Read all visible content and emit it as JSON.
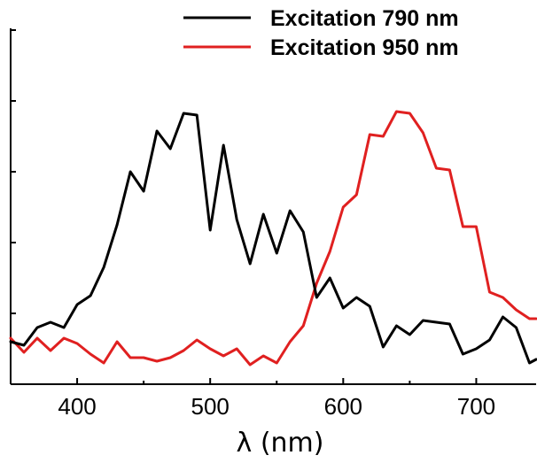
{
  "chart_data": {
    "type": "line",
    "xlabel": "λ (nm)",
    "ylabel": "",
    "xlim": [
      350,
      745
    ],
    "ylim": [
      0,
      1.0
    ],
    "x_ticks": [
      400,
      500,
      600,
      700
    ],
    "y_tick_count": 6,
    "y_tick_labels_shown": false,
    "grid": false,
    "legend_position": "top-right",
    "series": [
      {
        "name": "Excitation 790 nm",
        "color": "#000000",
        "x": [
          350,
          360,
          370,
          380,
          390,
          400,
          410,
          420,
          430,
          440,
          450,
          460,
          470,
          480,
          490,
          500,
          510,
          520,
          530,
          540,
          550,
          560,
          570,
          580,
          590,
          600,
          610,
          620,
          630,
          640,
          650,
          660,
          670,
          680,
          690,
          700,
          710,
          720,
          730,
          740,
          745
        ],
        "y": [
          0.12,
          0.11,
          0.16,
          0.175,
          0.16,
          0.225,
          0.25,
          0.33,
          0.45,
          0.6,
          0.545,
          0.715,
          0.665,
          0.765,
          0.76,
          0.435,
          0.675,
          0.465,
          0.34,
          0.48,
          0.37,
          0.49,
          0.43,
          0.245,
          0.3,
          0.215,
          0.245,
          0.22,
          0.105,
          0.165,
          0.14,
          0.18,
          0.175,
          0.17,
          0.085,
          0.1,
          0.125,
          0.19,
          0.16,
          0.06,
          0.07
        ]
      },
      {
        "name": "Excitation 950 nm",
        "color": "#e02020",
        "x": [
          350,
          360,
          370,
          380,
          390,
          400,
          410,
          420,
          430,
          440,
          450,
          460,
          470,
          480,
          490,
          500,
          510,
          520,
          530,
          540,
          550,
          560,
          570,
          580,
          590,
          600,
          610,
          620,
          630,
          640,
          650,
          660,
          670,
          680,
          690,
          700,
          710,
          720,
          730,
          740,
          745
        ],
        "y": [
          0.13,
          0.09,
          0.13,
          0.095,
          0.13,
          0.115,
          0.085,
          0.06,
          0.12,
          0.075,
          0.075,
          0.065,
          0.075,
          0.095,
          0.125,
          0.1,
          0.08,
          0.1,
          0.055,
          0.08,
          0.06,
          0.12,
          0.165,
          0.285,
          0.375,
          0.5,
          0.535,
          0.705,
          0.7,
          0.77,
          0.765,
          0.71,
          0.61,
          0.605,
          0.445,
          0.445,
          0.26,
          0.245,
          0.21,
          0.185,
          0.185
        ]
      }
    ]
  }
}
